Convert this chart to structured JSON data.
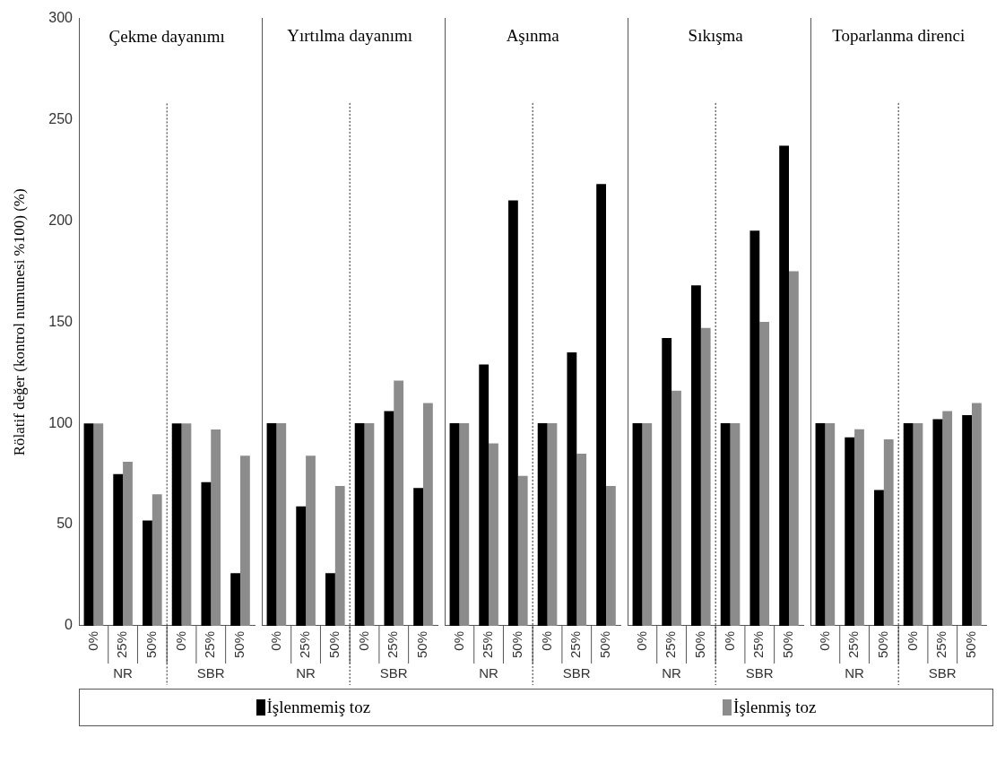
{
  "chart_data": [
    {
      "type": "bar",
      "title": "Çekme dayanımı",
      "ylabel": "Rölatif değer (kontrol numunesi %100) (%)",
      "categories": [
        "0%",
        "25%",
        "50%",
        "0%",
        "25%",
        "50%"
      ],
      "annotations": [
        "NR",
        "SBR"
      ],
      "ylim": [
        0,
        300
      ],
      "yticks": [
        0,
        50,
        100,
        150,
        200,
        250,
        300
      ],
      "legend": "bottom",
      "series": [
        {
          "name": "İşlenmemiş toz",
          "color": "#000000",
          "values": [
            100,
            75,
            52,
            100,
            71,
            26
          ]
        },
        {
          "name": "İşlenmiş toz",
          "color": "#8c8c8c",
          "values": [
            100,
            81,
            65,
            100,
            97,
            84
          ]
        }
      ]
    },
    {
      "type": "bar",
      "title": "Yırtılma dayanımı",
      "categories": [
        "0%",
        "25%",
        "50%",
        "0%",
        "25%",
        "50%"
      ],
      "annotations": [
        "NR",
        "SBR"
      ],
      "ylim": [
        0,
        300
      ],
      "yticks": [
        0,
        50,
        100,
        150,
        200,
        250,
        300
      ],
      "tick_labels": "x",
      "series": [
        {
          "color": "#000000",
          "values": [
            100,
            59,
            26,
            100,
            106,
            68
          ]
        },
        {
          "color": "#8c8c8c",
          "values": [
            100,
            84,
            69,
            100,
            121,
            110
          ]
        }
      ]
    },
    {
      "type": "bar",
      "title": "Aşınma",
      "categories": [
        "0%",
        "25%",
        "50%",
        "0%",
        "25%",
        "50%"
      ],
      "annotations": [
        "NR",
        "SBR"
      ],
      "ylim": [
        0,
        300
      ],
      "yticks": [
        0,
        50,
        100,
        150,
        200,
        250,
        300
      ],
      "tick_labels": "x",
      "series": [
        {
          "color": "#000000",
          "values": [
            100,
            129,
            210,
            100,
            135,
            218
          ]
        },
        {
          "color": "#8c8c8c",
          "values": [
            100,
            90,
            74,
            100,
            85,
            69
          ]
        }
      ]
    },
    {
      "type": "bar",
      "title": "Sıkışma",
      "categories": [
        "0%",
        "25%",
        "50%",
        "0%",
        "25%",
        "50%"
      ],
      "annotations": [
        "NR",
        "SBR"
      ],
      "ylim": [
        0,
        300
      ],
      "yticks": [
        0,
        50,
        100,
        150,
        200,
        250,
        300
      ],
      "tick_labels": "x",
      "series": [
        {
          "color": "#000000",
          "values": [
            100,
            142,
            168,
            100,
            195,
            237
          ]
        },
        {
          "color": "#8c8c8c",
          "values": [
            100,
            116,
            147,
            100,
            150,
            175
          ]
        }
      ]
    },
    {
      "type": "bar",
      "title": "Toparlanma direnci",
      "categories": [
        "0%",
        "25%",
        "50%",
        "0%",
        "25%",
        "50%"
      ],
      "annotations": [
        "NR",
        "SBR"
      ],
      "ylim": [
        0,
        300
      ],
      "yticks": [
        0,
        50,
        100,
        150,
        200,
        250,
        300
      ],
      "tick_labels": "x",
      "series": [
        {
          "color": "#000000",
          "values": [
            100,
            93,
            67,
            100,
            102,
            104
          ]
        },
        {
          "color": "#8c8c8c",
          "values": [
            100,
            97,
            92,
            100,
            106,
            110
          ]
        }
      ]
    }
  ]
}
